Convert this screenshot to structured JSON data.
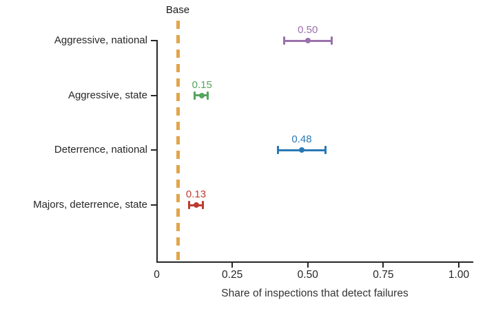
{
  "chart_data": {
    "type": "scatter",
    "variant": "dot-plot-with-error-bars",
    "orientation": "horizontal",
    "title": "",
    "xlabel": "Share of inspections that detect failures",
    "ylabel": "",
    "xlim": [
      0,
      1.05
    ],
    "grid": false,
    "legend": null,
    "axis_color": "#262626",
    "x_ticks": [
      {
        "value": 0.0,
        "label": "0"
      },
      {
        "value": 0.25,
        "label": "0.25"
      },
      {
        "value": 0.5,
        "label": "0.50"
      },
      {
        "value": 0.75,
        "label": "0.75"
      },
      {
        "value": 1.0,
        "label": "1.00"
      }
    ],
    "baseline": {
      "label": "Base",
      "value": 0.07,
      "style": "dashed",
      "color": "#e2a54c"
    },
    "series": [
      {
        "category": "Aggressive, national",
        "estimate": 0.5,
        "value_label": "0.50",
        "ci_low": 0.42,
        "ci_high": 0.58,
        "color": "#9a70ac"
      },
      {
        "category": "Aggressive, state",
        "estimate": 0.15,
        "value_label": "0.15",
        "ci_low": 0.125,
        "ci_high": 0.17,
        "color": "#55a45e"
      },
      {
        "category": "Deterrence, national",
        "estimate": 0.48,
        "value_label": "0.48",
        "ci_low": 0.4,
        "ci_high": 0.56,
        "color": "#2878b4"
      },
      {
        "category": "Majors, deterrence, state",
        "estimate": 0.13,
        "value_label": "0.13",
        "ci_low": 0.105,
        "ci_high": 0.155,
        "color": "#bf3b30"
      }
    ]
  }
}
